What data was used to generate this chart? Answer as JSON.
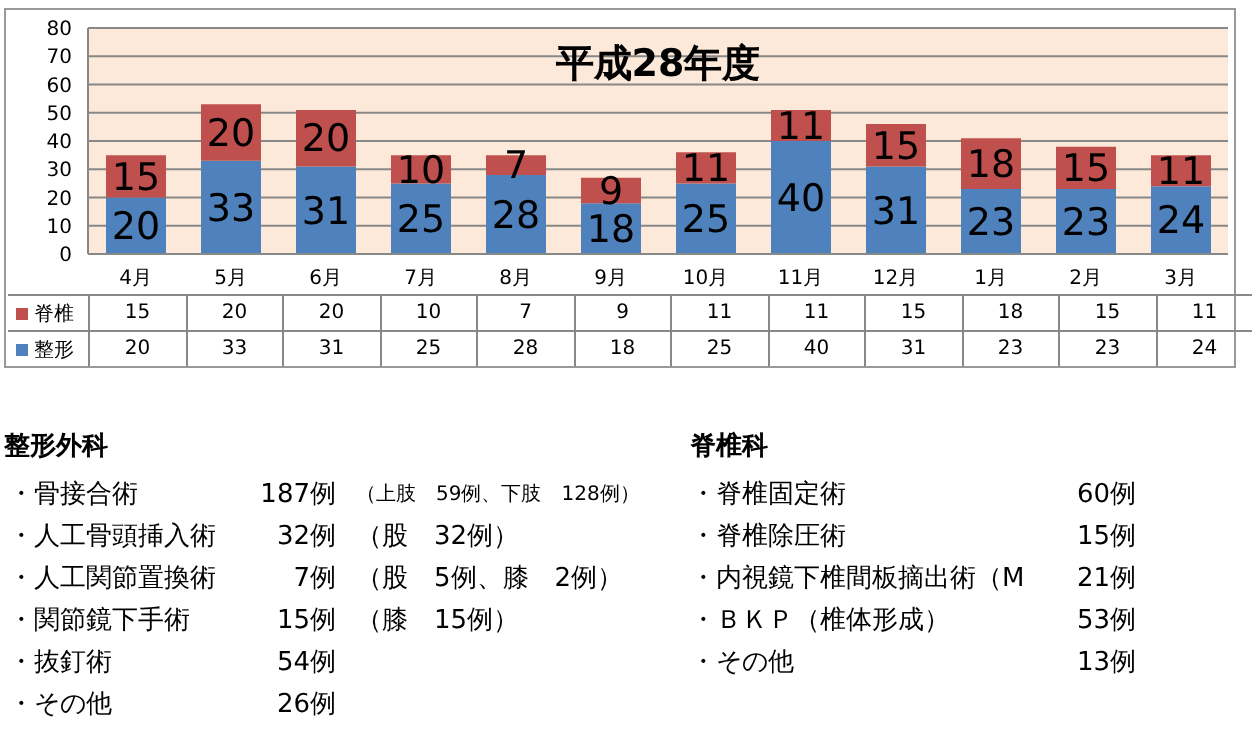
{
  "chart_data": {
    "type": "bar",
    "title": "平成28年度",
    "categories": [
      "4月",
      "5月",
      "6月",
      "7月",
      "8月",
      "9月",
      "10月",
      "11月",
      "12月",
      "1月",
      "2月",
      "3月"
    ],
    "series": [
      {
        "name": "整形",
        "color": "#4f81bd",
        "values": [
          20,
          33,
          31,
          25,
          28,
          18,
          25,
          40,
          31,
          23,
          23,
          24
        ],
        "value_labels": [
          "20",
          "33",
          "31",
          "25",
          "28",
          "18",
          "25",
          "40",
          "31",
          "23",
          "23",
          "24"
        ]
      },
      {
        "name": "脊椎",
        "color": "#c0504d",
        "values": [
          15,
          20,
          20,
          10,
          7,
          9,
          11,
          11,
          15,
          18,
          15,
          11
        ],
        "value_labels": [
          "15",
          "20",
          "20",
          "10",
          "7",
          "9",
          "11",
          "11",
          "15",
          "18",
          "15",
          "11"
        ]
      }
    ],
    "stacked": true,
    "ylim": [
      0,
      80
    ],
    "yticks": [
      0,
      10,
      20,
      30,
      40,
      50,
      60,
      70,
      80
    ],
    "grid": "y",
    "legend": "bottom left",
    "annotations": [
      "整形外科",
      "・骨接合術",
      "187例",
      "（上肢　59例、下肢　128例）",
      "・人工骨頭挿入術",
      "32例",
      "（股　32例）",
      "・人工関節置換術",
      "7例",
      "（股　5例、膝　2例）",
      "・関節鏡下手術",
      "15例",
      "（膝　15例）",
      "・抜釘術",
      "54例",
      "・その他",
      "26例",
      "脊椎科",
      "・脊椎固定術",
      "60例",
      "・脊椎除圧術",
      "15例",
      "・内視鏡下椎間板摘出術（M",
      "21例",
      "・ＢＫＰ（椎体形成）",
      "53例",
      "・その他",
      "13例",
      "15",
      "20",
      "20",
      "10",
      "7",
      "9",
      "11",
      "11",
      "15",
      "18",
      "15",
      "11",
      "20",
      "33",
      "31",
      "25",
      "28",
      "18",
      "25",
      "40",
      "31",
      "23",
      "23",
      "24"
    ]
  }
}
